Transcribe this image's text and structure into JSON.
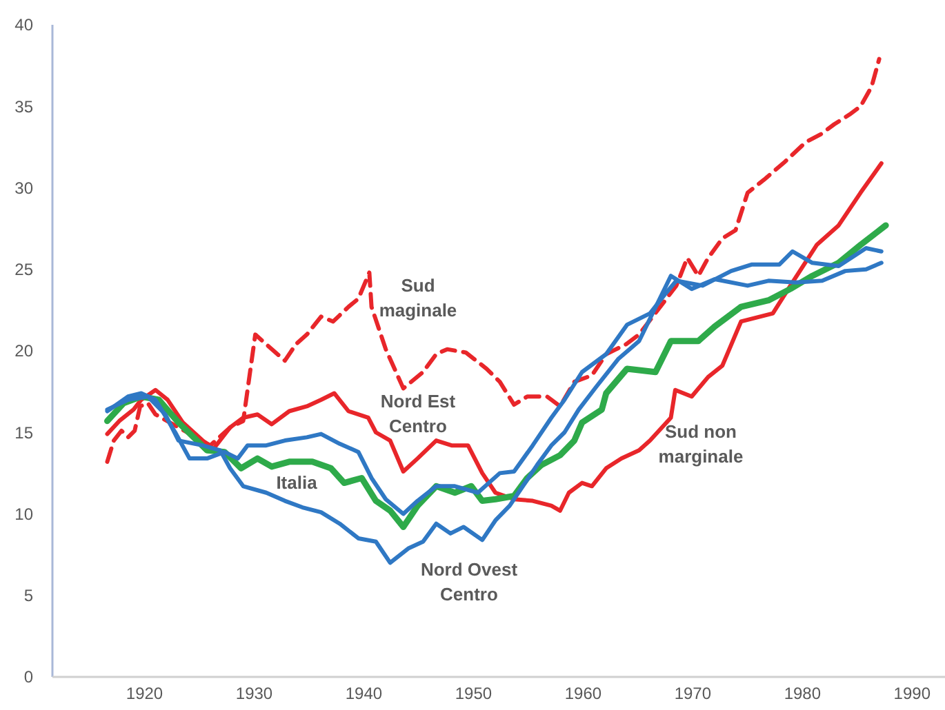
{
  "chart_data": {
    "type": "line",
    "xlim": [
      1911.6,
      1993
    ],
    "ylim": [
      0,
      40
    ],
    "xticks": [
      1920,
      1930,
      1940,
      1950,
      1960,
      1970,
      1980,
      1990
    ],
    "yticks": [
      0,
      5,
      10,
      15,
      20,
      25,
      30,
      35,
      40
    ],
    "grid": false,
    "marker": "none",
    "series": [
      {
        "color": "#e8262a",
        "line_style": "dashed",
        "x": [
          1916.6,
          1917.2,
          1917.9,
          1918.5,
          1919.1,
          1919.6,
          1920.3,
          1921.0,
          1926.0,
          1927.8,
          1929.0,
          1930.1,
          1931.1,
          1932.8,
          1933.8,
          1934.8,
          1936.1,
          1937.2,
          1938.6,
          1939.5,
          1940.5,
          1940.7,
          1942.0,
          1943.6,
          1945.4,
          1946.6,
          1947.6,
          1949.3,
          1951.2,
          1952.4,
          1953.7,
          1954.9,
          1956.7,
          1957.9,
          1959.2,
          1960.8,
          1962.1,
          1963.9,
          1965.1,
          1968.5,
          1969.5,
          1970.5,
          1971.4,
          1972.7,
          1973.9,
          1975.0,
          1976.5,
          1978.4,
          1980.3,
          1981.7,
          1982.9,
          1984.3,
          1985.3,
          1986.3,
          1987.0
        ],
        "values": [
          13.2,
          14.5,
          15.1,
          14.7,
          15.1,
          16.6,
          16.8,
          16.1,
          14.2,
          15.3,
          15.7,
          21.0,
          20.4,
          19.4,
          20.4,
          21.0,
          22.1,
          21.8,
          22.7,
          23.2,
          24.8,
          22.7,
          20.1,
          17.7,
          18.7,
          19.8,
          20.1,
          19.9,
          18.9,
          18.1,
          16.7,
          17.2,
          17.2,
          16.6,
          18.1,
          18.5,
          19.8,
          20.4,
          21.0,
          24.0,
          25.7,
          24.6,
          25.7,
          26.9,
          27.4,
          29.7,
          30.5,
          31.6,
          32.8,
          33.3,
          33.9,
          34.5,
          35.0,
          36.2,
          37.9
        ]
      },
      {
        "color": "#e8262a",
        "line_style": "solid",
        "x": [
          1916.6,
          1917.7,
          1919.0,
          1919.7,
          1921.0,
          1922.1,
          1923.5,
          1925.3,
          1926.3,
          1927.8,
          1929.0,
          1930.3,
          1931.6,
          1933.2,
          1934.8,
          1936.1,
          1937.3,
          1938.6,
          1940.4,
          1941.1,
          1942.4,
          1943.6,
          1944.9,
          1946.6,
          1948.0,
          1949.5,
          1950.8,
          1952.0,
          1953.7,
          1955.4,
          1957.1,
          1957.9,
          1958.7,
          1959.9,
          1960.8,
          1962.1,
          1963.5,
          1965.1,
          1966.1,
          1968.0,
          1968.4,
          1969.9,
          1971.4,
          1972.7,
          1974.4,
          1977.3,
          1978.9,
          1981.3,
          1983.3,
          1985.3,
          1987.2
        ],
        "values": [
          14.9,
          15.7,
          16.4,
          17.0,
          17.6,
          17.0,
          15.6,
          14.5,
          14.0,
          15.3,
          15.9,
          16.1,
          15.5,
          16.3,
          16.6,
          17.0,
          17.4,
          16.3,
          15.9,
          15.0,
          14.5,
          12.6,
          13.4,
          14.5,
          14.2,
          14.2,
          12.5,
          11.3,
          10.9,
          10.8,
          10.5,
          10.2,
          11.3,
          11.9,
          11.7,
          12.8,
          13.4,
          13.9,
          14.5,
          15.9,
          17.6,
          17.2,
          18.4,
          19.1,
          21.8,
          22.3,
          24.0,
          26.5,
          27.7,
          29.7,
          31.5
        ]
      },
      {
        "color": "#2eaa4a",
        "line_style": "solid",
        "x": [
          1916.6,
          1918.1,
          1919.7,
          1921.3,
          1923.1,
          1925.7,
          1927.3,
          1928.8,
          1930.3,
          1931.6,
          1933.2,
          1935.3,
          1937.0,
          1938.2,
          1939.8,
          1941.1,
          1942.4,
          1943.6,
          1944.9,
          1946.6,
          1948.3,
          1949.8,
          1950.8,
          1952.0,
          1953.7,
          1954.9,
          1956.2,
          1957.9,
          1959.2,
          1959.9,
          1961.7,
          1962.1,
          1964.0,
          1966.6,
          1968.0,
          1970.5,
          1972.0,
          1974.4,
          1976.9,
          1978.9,
          1980.9,
          1983.3,
          1985.3,
          1987.6
        ],
        "values": [
          15.7,
          16.8,
          17.2,
          17.0,
          15.6,
          13.9,
          13.8,
          12.8,
          13.4,
          12.9,
          13.2,
          13.2,
          12.8,
          11.9,
          12.2,
          10.8,
          10.2,
          9.2,
          10.5,
          11.7,
          11.3,
          11.7,
          10.8,
          10.9,
          11.1,
          12.2,
          13.0,
          13.6,
          14.5,
          15.6,
          16.4,
          17.4,
          18.9,
          18.7,
          20.6,
          20.6,
          21.5,
          22.7,
          23.1,
          23.8,
          24.6,
          25.4,
          26.5,
          27.7
        ]
      },
      {
        "color": "#2f78c4",
        "line_style": "solid",
        "x": [
          1916.6,
          1918.5,
          1919.7,
          1921.0,
          1922.8,
          1924.1,
          1925.7,
          1927.3,
          1928.5,
          1929.4,
          1931.1,
          1932.8,
          1934.8,
          1936.1,
          1937.8,
          1939.5,
          1940.7,
          1942.0,
          1943.6,
          1944.9,
          1946.6,
          1948.3,
          1950.4,
          1952.4,
          1953.7,
          1955.4,
          1957.1,
          1958.3,
          1959.9,
          1962.1,
          1964.0,
          1966.1,
          1967.5,
          1968.5,
          1970.9,
          1973.5,
          1975.4,
          1977.9,
          1979.1,
          1980.9,
          1983.3,
          1985.8,
          1987.2
        ],
        "values": [
          16.3,
          17.2,
          17.4,
          17.0,
          15.0,
          13.4,
          13.4,
          13.8,
          13.4,
          14.2,
          14.2,
          14.5,
          14.7,
          14.9,
          14.3,
          13.8,
          12.2,
          10.9,
          10.0,
          10.8,
          11.7,
          11.7,
          11.3,
          12.5,
          12.6,
          14.2,
          15.9,
          17.0,
          18.7,
          19.8,
          21.6,
          22.3,
          23.5,
          24.3,
          24.0,
          24.9,
          25.3,
          25.3,
          26.1,
          25.4,
          25.2,
          26.3,
          26.1
        ]
      },
      {
        "color": "#2f78c4",
        "line_style": "solid",
        "x": [
          1916.6,
          1918.5,
          1920.3,
          1921.9,
          1923.1,
          1925.3,
          1926.9,
          1927.8,
          1929.0,
          1931.1,
          1932.8,
          1934.4,
          1936.1,
          1937.8,
          1939.5,
          1941.1,
          1942.4,
          1944.1,
          1945.4,
          1946.6,
          1947.9,
          1949.1,
          1950.8,
          1952.0,
          1953.3,
          1954.5,
          1955.8,
          1957.1,
          1958.3,
          1959.6,
          1961.2,
          1963.2,
          1965.1,
          1968.0,
          1969.9,
          1972.0,
          1975.0,
          1976.9,
          1979.4,
          1981.8,
          1983.9,
          1985.8,
          1987.2
        ],
        "values": [
          16.4,
          17.0,
          17.2,
          16.1,
          14.5,
          14.2,
          13.9,
          12.8,
          11.7,
          11.3,
          10.8,
          10.4,
          10.1,
          9.4,
          8.5,
          8.3,
          7.0,
          7.9,
          8.3,
          9.4,
          8.8,
          9.2,
          8.4,
          9.6,
          10.5,
          11.7,
          13.0,
          14.2,
          15.0,
          16.4,
          17.8,
          19.5,
          20.6,
          24.6,
          23.8,
          24.4,
          24.0,
          24.3,
          24.2,
          24.3,
          24.9,
          25.0,
          25.4
        ]
      }
    ],
    "annotations": [
      "Sud\nmaginale",
      "Nord Est\nCentro",
      "Italia",
      "Nord Ovest\nCentro",
      "Sud non\nmarginale"
    ]
  }
}
